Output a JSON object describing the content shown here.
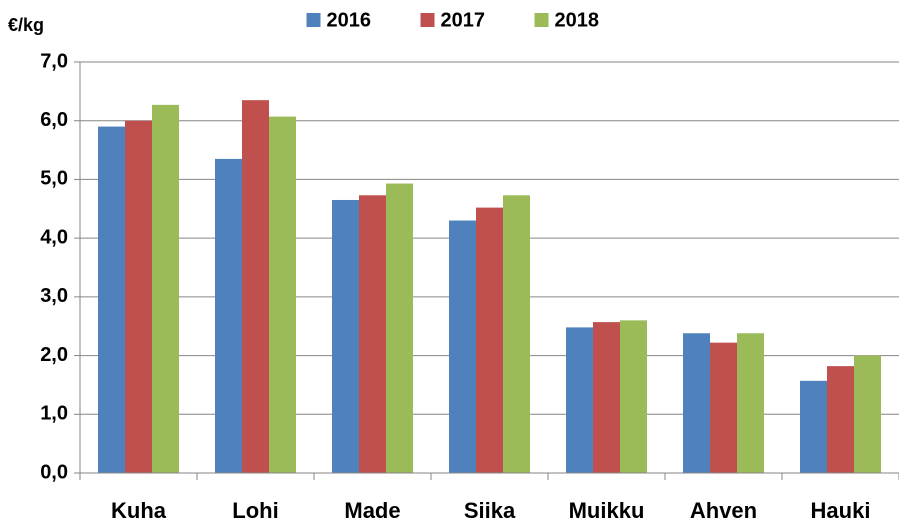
{
  "chart_data": {
    "type": "bar",
    "y_label": "€/kg",
    "categories": [
      "Kuha",
      "Lohi",
      "Made",
      "Siika",
      "Muikku",
      "Ahven",
      "Hauki"
    ],
    "series": [
      {
        "name": "2016",
        "color": "#4f81bd",
        "values": [
          5.9,
          5.35,
          4.65,
          4.3,
          2.48,
          2.38,
          1.57
        ]
      },
      {
        "name": "2017",
        "color": "#c0504d",
        "values": [
          6.0,
          6.35,
          4.73,
          4.52,
          2.57,
          2.22,
          1.82
        ]
      },
      {
        "name": "2018",
        "color": "#9bbb59",
        "values": [
          6.27,
          6.07,
          4.93,
          4.73,
          2.6,
          2.38,
          2.0
        ]
      }
    ],
    "ylim": [
      0,
      7
    ],
    "yticks": [
      {
        "value": 0,
        "label": "0,0"
      },
      {
        "value": 1,
        "label": "1,0"
      },
      {
        "value": 2,
        "label": "2,0"
      },
      {
        "value": 3,
        "label": "3,0"
      },
      {
        "value": 4,
        "label": "4,0"
      },
      {
        "value": 5,
        "label": "5,0"
      },
      {
        "value": 6,
        "label": "6,0"
      },
      {
        "value": 7,
        "label": "7,0"
      }
    ],
    "grid": true,
    "legend": "top"
  }
}
